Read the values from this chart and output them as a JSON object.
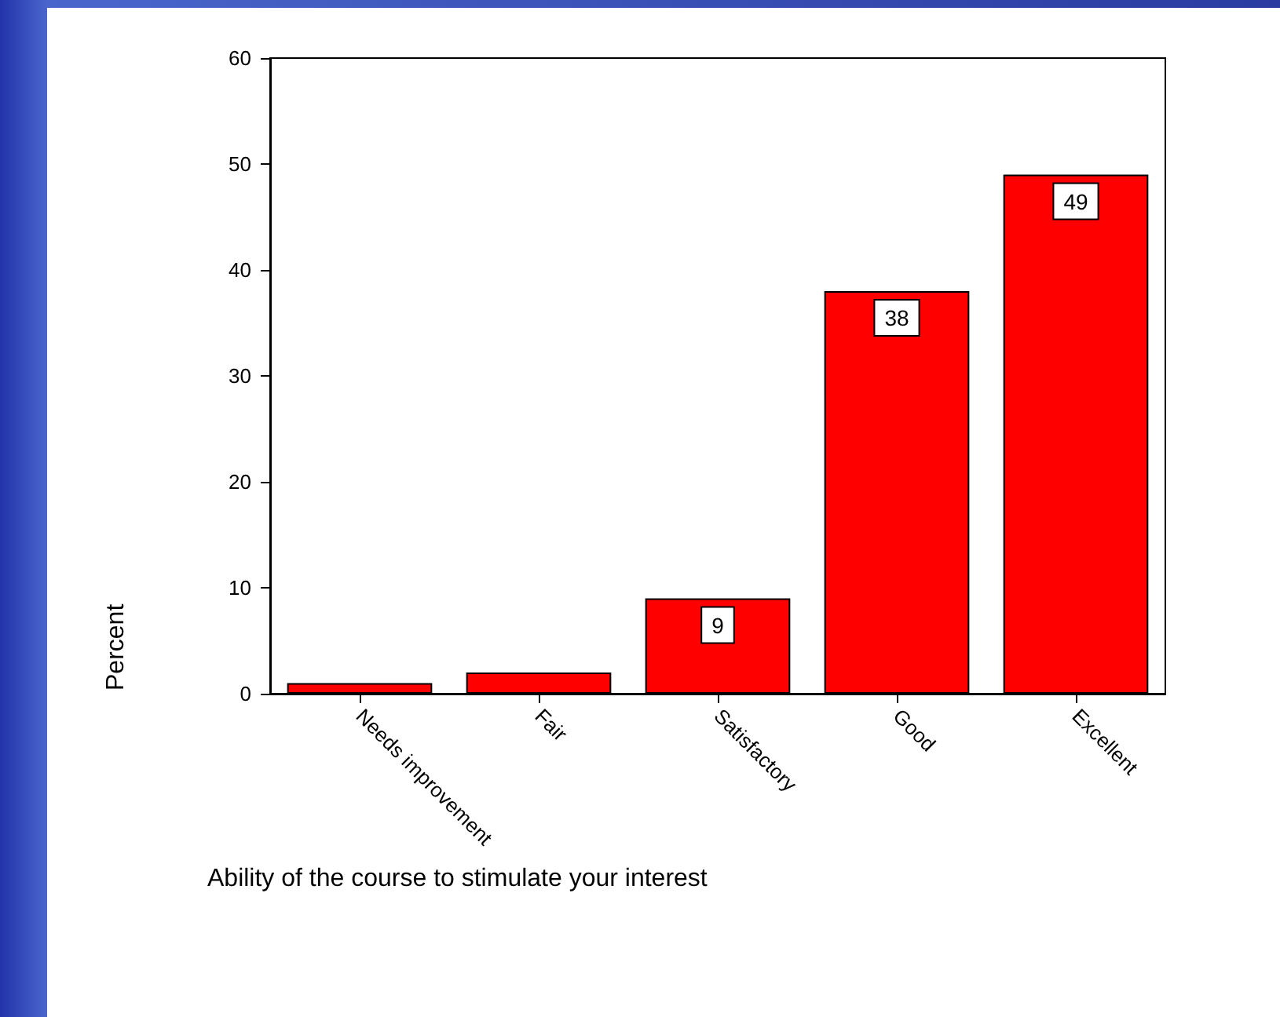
{
  "chart_data": {
    "type": "bar",
    "xlabel": "Ability of the course to stimulate your interest",
    "ylabel": "Percent",
    "categories": [
      "Needs improvement",
      "Fair",
      "Satisfactory",
      "Good",
      "Excellent"
    ],
    "values": [
      1,
      2,
      9,
      38,
      49
    ],
    "color": "#ff0000",
    "value_labels": [
      null,
      null,
      "9",
      "38",
      "49"
    ],
    "ylim": [
      0,
      60
    ],
    "yticks": [
      0,
      10,
      20,
      30,
      40,
      50,
      60
    ],
    "grid": false
  }
}
